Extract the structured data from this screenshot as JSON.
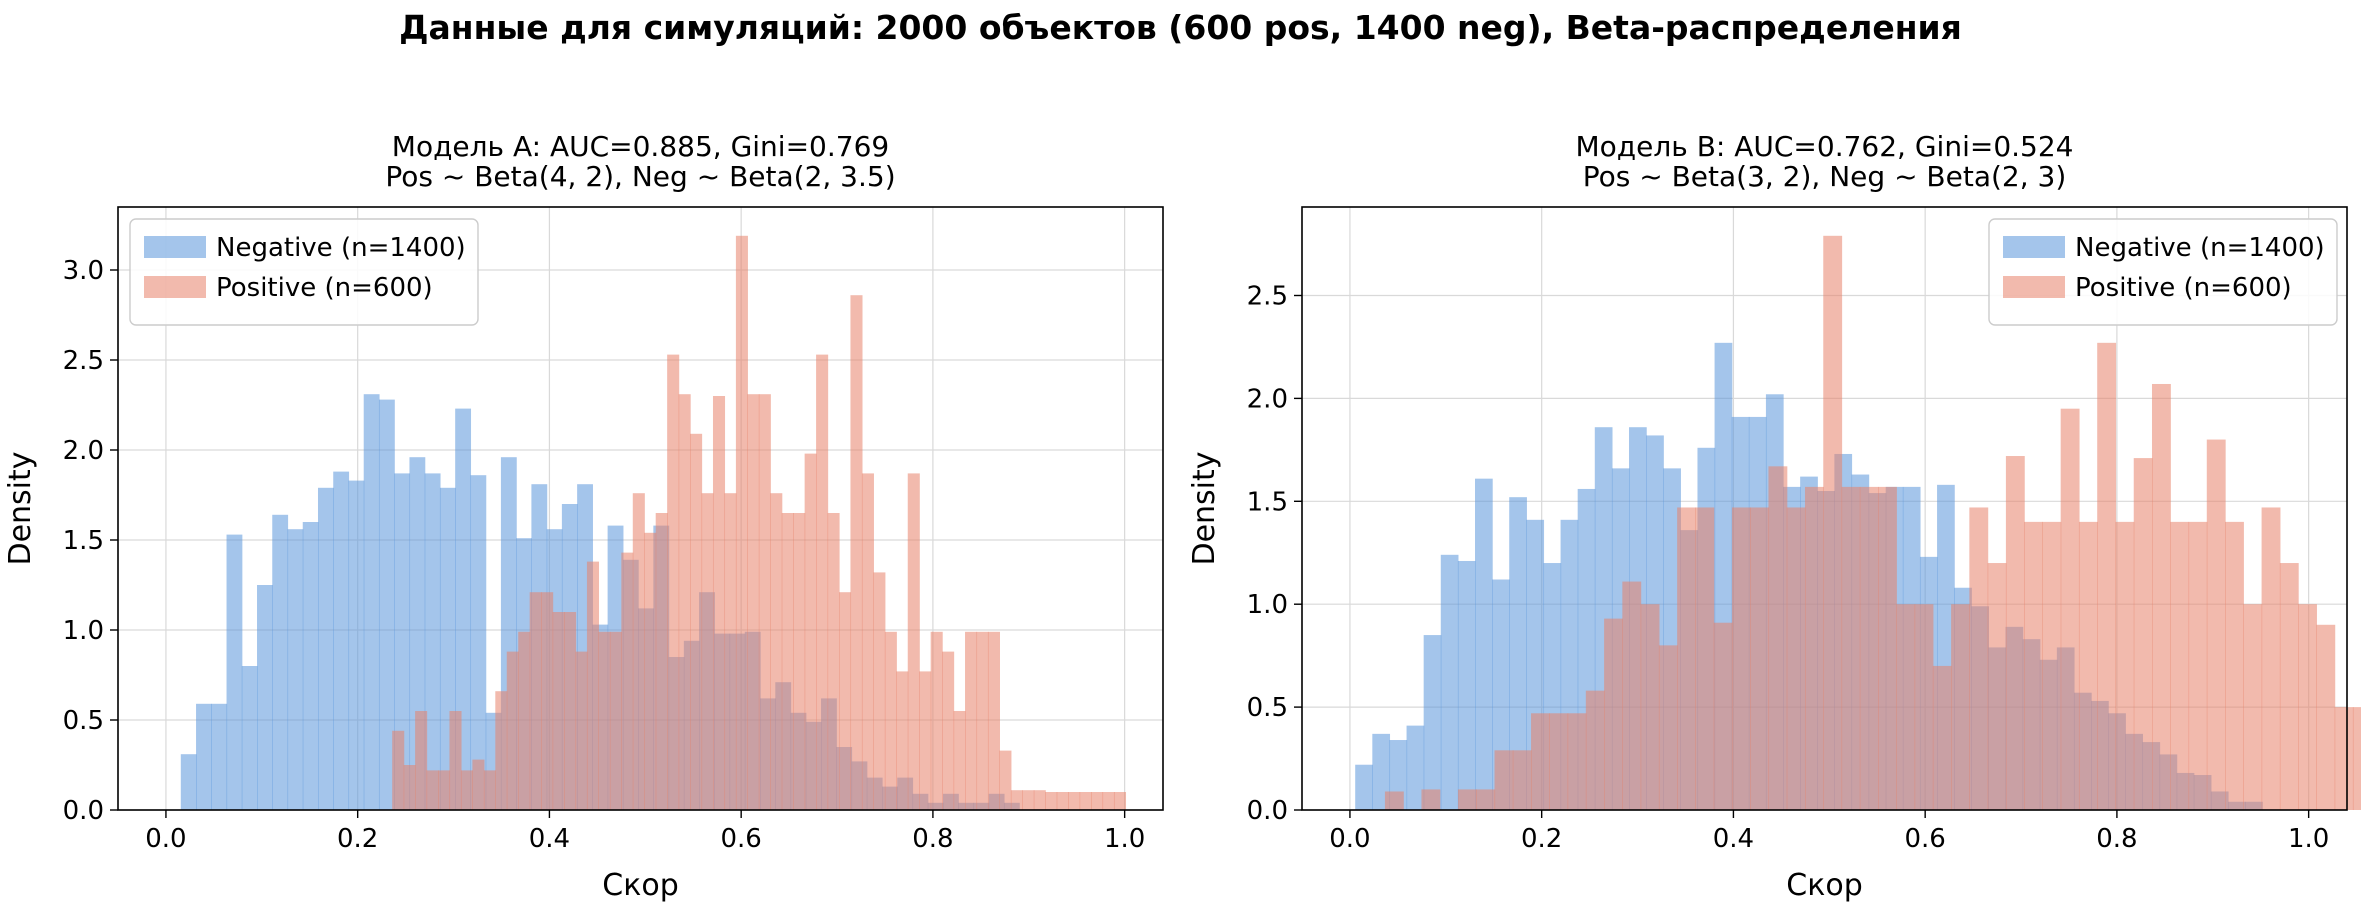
{
  "suptitle": "Данные для симуляций: 2000 объектов (600 pos, 1400 neg), Beta-распределения",
  "colors": {
    "negative": "#5a96da",
    "positive": "#e8826a",
    "grid": "#d9d9d9",
    "axis": "#000000"
  },
  "chart_data": [
    {
      "type": "histogram",
      "title_lines": [
        "Модель A: AUC=0.885, Gini=0.769",
        "Pos ~ Beta(4, 2),  Neg ~ Beta(2, 3.5)"
      ],
      "xlabel": "Скор",
      "ylabel": "Density",
      "xlim": [
        -0.05,
        1.04
      ],
      "ylim": [
        0,
        3.35
      ],
      "xticks": [
        0.0,
        0.2,
        0.4,
        0.6,
        0.8,
        1.0
      ],
      "xtick_labels": [
        "0.0",
        "0.2",
        "0.4",
        "0.6",
        "0.8",
        "1.0"
      ],
      "yticks": [
        0.0,
        0.5,
        1.0,
        1.5,
        2.0,
        2.5,
        3.0
      ],
      "ytick_labels": [
        "0.0",
        "0.5",
        "1.0",
        "1.5",
        "2.0",
        "2.5",
        "3.0"
      ],
      "grid": true,
      "legend_position": "top-left",
      "series": [
        {
          "name": "Negative (n=1400)",
          "color_key": "negative",
          "bin_start": 0.0155,
          "bin_width": 0.0159,
          "values": [
            0.31,
            0.59,
            0.59,
            1.53,
            0.8,
            1.25,
            1.64,
            1.56,
            1.6,
            1.79,
            1.88,
            1.83,
            2.31,
            2.28,
            1.87,
            1.96,
            1.87,
            1.79,
            2.23,
            1.86,
            0.54,
            1.96,
            1.51,
            1.81,
            1.56,
            1.7,
            1.81,
            1.03,
            1.58,
            1.39,
            1.12,
            1.58,
            0.85,
            0.94,
            1.21,
            0.98,
            0.98,
            0.99,
            0.62,
            0.71,
            0.54,
            0.49,
            0.62,
            0.35,
            0.27,
            0.18,
            0.13,
            0.18,
            0.09,
            0.04,
            0.09,
            0.04,
            0.04,
            0.09,
            0.04
          ]
        },
        {
          "name": "Positive (n=600)",
          "color_key": "positive",
          "bin_start": 0.236,
          "bin_width": 0.01195,
          "values": [
            0.44,
            0.25,
            0.55,
            0.22,
            0.22,
            0.55,
            0.22,
            0.28,
            0.22,
            0.66,
            0.88,
            0.99,
            1.21,
            1.21,
            1.1,
            1.1,
            0.88,
            1.38,
            0.99,
            0.99,
            1.43,
            1.76,
            1.54,
            1.65,
            2.53,
            2.31,
            2.09,
            1.76,
            2.3,
            1.76,
            3.19,
            2.31,
            2.31,
            1.76,
            1.65,
            1.65,
            1.98,
            2.53,
            1.65,
            1.21,
            2.86,
            1.87,
            1.32,
            0.99,
            0.77,
            1.87,
            0.77,
            0.99,
            0.88,
            0.55,
            0.99,
            0.99,
            0.99,
            0.33,
            0.11,
            0.11,
            0.11,
            0.1,
            0.1,
            0.1,
            0.1,
            0.1,
            0.1,
            0.1
          ]
        }
      ]
    },
    {
      "type": "histogram",
      "title_lines": [
        "Модель B: AUC=0.762, Gini=0.524",
        "Pos ~ Beta(3, 2),  Neg ~ Beta(2, 3)"
      ],
      "xlabel": "Скор",
      "ylabel": "Density",
      "xlim": [
        -0.05,
        1.04
      ],
      "ylim": [
        0,
        2.93
      ],
      "xticks": [
        0.0,
        0.2,
        0.4,
        0.6,
        0.8,
        1.0
      ],
      "xtick_labels": [
        "0.0",
        "0.2",
        "0.4",
        "0.6",
        "0.8",
        "1.0"
      ],
      "yticks": [
        0.0,
        0.5,
        1.0,
        1.5,
        2.0,
        2.5
      ],
      "ytick_labels": [
        "0.0",
        "0.5",
        "1.0",
        "1.5",
        "2.0",
        "2.5"
      ],
      "grid": true,
      "legend_position": "top-right",
      "series": [
        {
          "name": "Negative (n=1400)",
          "color_key": "negative",
          "bin_start": 0.0055,
          "bin_width": 0.01785,
          "values": [
            0.22,
            0.37,
            0.34,
            0.41,
            0.85,
            1.24,
            1.21,
            1.61,
            1.12,
            1.52,
            1.41,
            1.2,
            1.41,
            1.56,
            1.86,
            1.66,
            1.86,
            1.82,
            1.66,
            1.36,
            1.76,
            2.27,
            1.91,
            1.91,
            2.02,
            1.57,
            1.62,
            1.55,
            1.73,
            1.63,
            1.54,
            1.57,
            1.57,
            1.23,
            1.58,
            1.08,
            0.99,
            0.79,
            0.89,
            0.83,
            0.73,
            0.79,
            0.57,
            0.53,
            0.47,
            0.37,
            0.33,
            0.27,
            0.18,
            0.17,
            0.09,
            0.04,
            0.04
          ]
        },
        {
          "name": "Positive (n=600)",
          "color_key": "positive",
          "bin_start": 0.0365,
          "bin_width": 0.01905,
          "values": [
            0.09,
            0.0,
            0.1,
            0.0,
            0.1,
            0.1,
            0.29,
            0.29,
            0.47,
            0.47,
            0.47,
            0.58,
            0.93,
            1.11,
            1.0,
            0.8,
            1.47,
            1.47,
            0.91,
            1.47,
            1.47,
            1.67,
            1.47,
            1.57,
            2.79,
            1.57,
            1.57,
            1.57,
            1.0,
            1.0,
            0.7,
            1.0,
            1.47,
            1.2,
            1.72,
            1.4,
            1.4,
            1.95,
            1.4,
            2.27,
            1.4,
            1.71,
            2.07,
            1.4,
            1.4,
            1.8,
            1.4,
            1.0,
            1.47,
            1.2,
            1.0,
            0.9,
            0.5,
            0.5,
            0.26,
            0.0,
            0.26
          ]
        }
      ]
    }
  ]
}
